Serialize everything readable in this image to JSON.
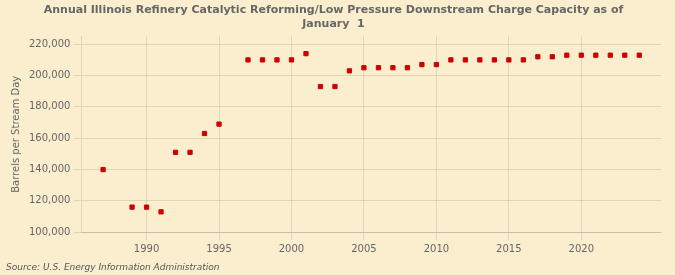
{
  "chart_data": {
    "type": "scatter",
    "title": "Annual Illinois Refinery Catalytic Reforming/Low Pressure Downstream Charge Capacity as of\nJanuary  1",
    "ylabel": "Barrels per Stream Day",
    "annotations": [
      "Source: U.S. Energy Information Administration"
    ],
    "color": "#cc0000",
    "marker": "square",
    "x": [
      1987,
      1989,
      1990,
      1991,
      1992,
      1993,
      1994,
      1995,
      1997,
      1998,
      1999,
      2000,
      2001,
      2002,
      2003,
      2004,
      2005,
      2006,
      2007,
      2008,
      2009,
      2010,
      2011,
      2012,
      2013,
      2014,
      2015,
      2016,
      2017,
      2018,
      2019,
      2020,
      2021,
      2022,
      2023,
      2024
    ],
    "values": [
      140000,
      116000,
      116000,
      113000,
      151000,
      151000,
      163000,
      169000,
      210000,
      210000,
      210000,
      210000,
      214000,
      193000,
      193000,
      203000,
      205000,
      205000,
      205000,
      205000,
      207000,
      207000,
      210000,
      210000,
      210000,
      210000,
      210000,
      210000,
      212000,
      212000,
      213000,
      213000,
      213000,
      213000,
      213000,
      213000
    ],
    "xlim": [
      1985.5,
      2025.5
    ],
    "ylim": [
      100000,
      225000
    ],
    "xticks": [
      1990,
      1995,
      2000,
      2005,
      2010,
      2015,
      2020
    ],
    "yticks": [
      {
        "value": 100000,
        "label": "100,000"
      },
      {
        "value": 120000,
        "label": "120,000"
      },
      {
        "value": 140000,
        "label": "140,000"
      },
      {
        "value": 160000,
        "label": "160,000"
      },
      {
        "value": 180000,
        "label": "180,000"
      },
      {
        "value": 200000,
        "label": "200,000"
      },
      {
        "value": 220000,
        "label": "220,000"
      }
    ],
    "grid": true
  }
}
